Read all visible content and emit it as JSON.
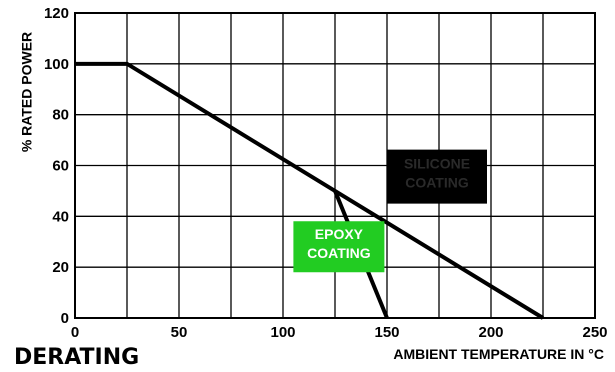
{
  "chart_data": {
    "type": "line",
    "title": "DERATING",
    "xlabel": "AMBIENT TEMPERATURE IN °C",
    "ylabel": "% RATED POWER",
    "xlim": [
      0,
      250
    ],
    "ylim": [
      0,
      120
    ],
    "x_ticks": [
      0,
      50,
      100,
      150,
      200,
      250
    ],
    "y_ticks": [
      0,
      20,
      40,
      60,
      80,
      100,
      120
    ],
    "x_tick_labels": [
      "0",
      "50",
      "100",
      "150",
      "200",
      "250"
    ],
    "y_tick_labels": [
      "0",
      "20",
      "40",
      "60",
      "80",
      "100",
      "120"
    ],
    "grid": true,
    "series": [
      {
        "points": [
          [
            0,
            100
          ],
          [
            25,
            100
          ],
          [
            125,
            50
          ],
          [
            225,
            0
          ]
        ]
      },
      {
        "points": [
          [
            125,
            50
          ],
          [
            150,
            0
          ]
        ]
      }
    ],
    "annotations": [
      {
        "text_lines": [
          "SILICONE",
          "COATING"
        ],
        "background": "#000000",
        "color": "#2a2a2a",
        "anchor": [
          150,
          45
        ]
      },
      {
        "text_lines": [
          "EPOXY",
          "COATING"
        ],
        "background": "#22cc22",
        "color": "#ffffff",
        "anchor": [
          105,
          18
        ]
      }
    ]
  }
}
